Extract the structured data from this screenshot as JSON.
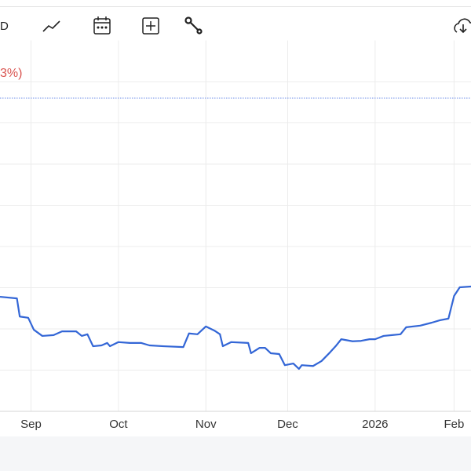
{
  "header": {
    "left_text": "D",
    "change_text": "3%)"
  },
  "chart_data": {
    "type": "line",
    "color": "#3366d6",
    "x": [
      0,
      6,
      7,
      10,
      12,
      15,
      19,
      22,
      24,
      27,
      29,
      31,
      33,
      36,
      38,
      39,
      42,
      46,
      50,
      53,
      58,
      65,
      67,
      70,
      73,
      76,
      78,
      79,
      82,
      88,
      89,
      92,
      94,
      96,
      99,
      101,
      104,
      106,
      107,
      111,
      114,
      117,
      119,
      121,
      125,
      128,
      131,
      133,
      136,
      139,
      142,
      144,
      149,
      153,
      156,
      159,
      161,
      163,
      167
    ],
    "values": [
      2.78,
      2.74,
      2.3,
      2.27,
      1.98,
      1.83,
      1.85,
      1.94,
      1.94,
      1.94,
      1.83,
      1.87,
      1.58,
      1.6,
      1.66,
      1.58,
      1.68,
      1.66,
      1.66,
      1.6,
      1.58,
      1.56,
      1.89,
      1.87,
      2.06,
      1.96,
      1.87,
      1.58,
      1.68,
      1.66,
      1.41,
      1.54,
      1.54,
      1.41,
      1.39,
      1.12,
      1.16,
      1.03,
      1.12,
      1.1,
      1.22,
      1.43,
      1.58,
      1.75,
      1.7,
      1.71,
      1.75,
      1.75,
      1.83,
      1.85,
      1.87,
      2.04,
      2.08,
      2.15,
      2.21,
      2.25,
      2.8,
      3.01,
      3.03
    ],
    "xlim": [
      0,
      167
    ],
    "xticks": [
      {
        "value": 11,
        "label": "Sep"
      },
      {
        "value": 42,
        "label": "Oct"
      },
      {
        "value": 73,
        "label": "Nov"
      },
      {
        "value": 102,
        "label": "Dec"
      },
      {
        "value": 133,
        "label": "2026"
      },
      {
        "value": 161,
        "label": "Feb"
      }
    ],
    "ylim": [
      0,
      9
    ],
    "yticks": [
      1,
      2,
      3,
      4,
      5,
      6,
      7,
      8
    ],
    "reference_line": 7.6,
    "grid": true
  }
}
